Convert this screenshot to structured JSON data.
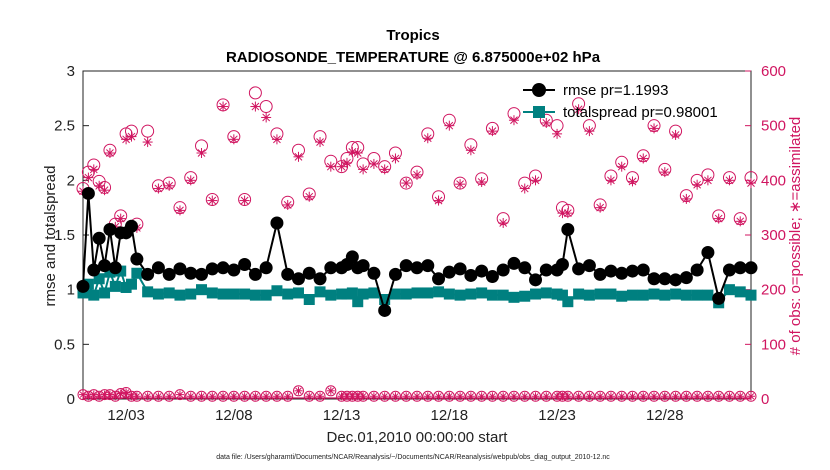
{
  "chart_data": {
    "type": "line",
    "title": "Tropics",
    "subtitle": "RADIOSONDE_TEMPERATURE @ 6.875000e+02 hPa",
    "xlabel": "Dec.01,2010 00:00:00 start",
    "ylabel": "rmse and totalspread",
    "ylabel_right": "# of obs: o=possible; ∗=assimilated",
    "ylim": [
      0,
      3
    ],
    "ylim_right": [
      0,
      600
    ],
    "xlim": [
      1,
      32
    ],
    "x_ticks": [
      3,
      8,
      13,
      18,
      23,
      28
    ],
    "x_tick_labels": [
      "12/03",
      "12/08",
      "12/13",
      "12/18",
      "12/23",
      "12/28"
    ],
    "y_ticks": [
      "0",
      "0.5",
      "1",
      "1.5",
      "2",
      "2.5",
      "3"
    ],
    "y_ticks_right": [
      "0",
      "100",
      "200",
      "300",
      "400",
      "500",
      "600"
    ],
    "footnote": "data file: /Users/gharamti/Documents/NCAR/Reanalysis/~/Documents/NCAR/Reanalysis/webpub/obs_diag_output_2010-12.nc",
    "legend": [
      {
        "label": "rmse pr=1.1993",
        "color": "#000000",
        "marker": "circle"
      },
      {
        "label": "totalspread pr=0.98001",
        "color": "#008080",
        "marker": "square"
      }
    ],
    "x": [
      1.0,
      1.25,
      1.5,
      1.75,
      2.0,
      2.25,
      2.5,
      2.75,
      3.0,
      3.25,
      3.5,
      4.0,
      4.5,
      5.0,
      5.5,
      6.0,
      6.5,
      7.0,
      7.5,
      8.0,
      8.5,
      9.0,
      9.5,
      10.0,
      10.5,
      11.0,
      11.5,
      12.0,
      12.5,
      13.0,
      13.25,
      13.5,
      13.75,
      14.0,
      14.5,
      15.0,
      15.5,
      16.0,
      16.5,
      17.0,
      17.5,
      18.0,
      18.5,
      19.0,
      19.5,
      20.0,
      20.5,
      21.0,
      21.5,
      22.0,
      22.5,
      23.0,
      23.25,
      23.5,
      24.0,
      24.5,
      25.0,
      25.5,
      26.0,
      26.5,
      27.0,
      27.5,
      28.0,
      28.5,
      29.0,
      29.5,
      30.0,
      30.5,
      31.0,
      31.5,
      32.0
    ],
    "series": [
      {
        "name": "rmse",
        "color": "#000000",
        "values": [
          1.03,
          1.88,
          1.18,
          1.47,
          1.22,
          1.55,
          1.2,
          1.52,
          1.52,
          1.58,
          1.28,
          1.14,
          1.2,
          1.14,
          1.19,
          1.15,
          1.14,
          1.19,
          1.2,
          1.18,
          1.23,
          1.14,
          1.2,
          1.61,
          1.14,
          1.1,
          1.15,
          1.1,
          1.2,
          1.2,
          1.23,
          1.3,
          1.2,
          1.22,
          1.15,
          0.81,
          1.14,
          1.22,
          1.2,
          1.22,
          1.1,
          1.16,
          1.19,
          1.13,
          1.17,
          1.12,
          1.18,
          1.24,
          1.2,
          1.09,
          1.18,
          1.18,
          1.23,
          1.55,
          1.19,
          1.22,
          1.14,
          1.17,
          1.15,
          1.17,
          1.18,
          1.1,
          1.1,
          1.09,
          1.11,
          1.18,
          1.34,
          0.92,
          1.18,
          1.2,
          1.2
        ]
      },
      {
        "name": "totalspread",
        "color": "#008080",
        "values": [
          0.97,
          1.05,
          0.95,
          1.1,
          0.97,
          1.16,
          1.03,
          1.17,
          1.02,
          1.05,
          1.15,
          0.98,
          0.96,
          0.97,
          0.95,
          0.96,
          1.0,
          0.97,
          0.96,
          0.96,
          0.96,
          0.95,
          0.95,
          0.99,
          0.96,
          0.97,
          0.91,
          0.98,
          0.95,
          0.96,
          0.96,
          0.97,
          0.89,
          0.96,
          0.97,
          0.91,
          0.96,
          0.96,
          0.97,
          0.97,
          0.98,
          0.96,
          0.95,
          0.96,
          0.97,
          0.95,
          0.95,
          0.93,
          0.94,
          0.96,
          0.97,
          0.96,
          0.95,
          0.89,
          0.96,
          0.95,
          0.96,
          0.96,
          0.94,
          0.95,
          0.95,
          0.96,
          0.95,
          0.96,
          0.95,
          0.95,
          0.95,
          0.88,
          1.0,
          0.98,
          0.95
        ]
      },
      {
        "name": "obs_possible",
        "color": "#d01560",
        "axis": "right",
        "values": [
          385,
          415,
          428,
          398,
          387,
          455,
          320,
          335,
          485,
          490,
          320,
          490,
          390,
          395,
          350,
          405,
          463,
          365,
          538,
          480,
          365,
          560,
          535,
          485,
          360,
          455,
          375,
          480,
          435,
          425,
          440,
          460,
          460,
          430,
          440,
          425,
          450,
          395,
          415,
          485,
          370,
          510,
          395,
          465,
          403,
          495,
          330,
          522,
          395,
          408,
          510,
          500,
          350,
          345,
          540,
          500,
          355,
          408,
          433,
          405,
          445,
          500,
          420,
          490,
          372,
          400,
          410,
          335,
          405,
          330,
          405
        ]
      },
      {
        "name": "obs_assimilated",
        "color": "#d01560",
        "axis": "right",
        "values": [
          380,
          405,
          420,
          390,
          382,
          450,
          315,
          330,
          475,
          480,
          313,
          470,
          385,
          390,
          345,
          400,
          450,
          363,
          535,
          475,
          363,
          535,
          515,
          475,
          355,
          443,
          370,
          470,
          425,
          425,
          432,
          452,
          450,
          420,
          430,
          420,
          440,
          395,
          410,
          477,
          363,
          500,
          393,
          455,
          397,
          490,
          322,
          510,
          385,
          400,
          505,
          485,
          340,
          340,
          530,
          490,
          350,
          400,
          425,
          398,
          440,
          495,
          415,
          483,
          366,
          392,
          400,
          330,
          400,
          325,
          395
        ]
      },
      {
        "name": "obs_possible_bottom",
        "color": "#d01560",
        "axis": "right",
        "values": [
          8,
          5,
          8,
          5,
          8,
          8,
          5,
          10,
          12,
          5,
          5,
          5,
          5,
          5,
          8,
          5,
          5,
          5,
          5,
          5,
          5,
          5,
          5,
          5,
          5,
          15,
          5,
          5,
          15,
          5,
          5,
          5,
          5,
          5,
          5,
          5,
          5,
          5,
          5,
          5,
          5,
          5,
          5,
          5,
          5,
          5,
          5,
          5,
          5,
          5,
          5,
          5,
          5,
          5,
          5,
          5,
          5,
          5,
          5,
          5,
          5,
          5,
          5,
          5,
          5,
          5,
          5,
          5,
          5,
          5,
          5
        ]
      }
    ]
  }
}
